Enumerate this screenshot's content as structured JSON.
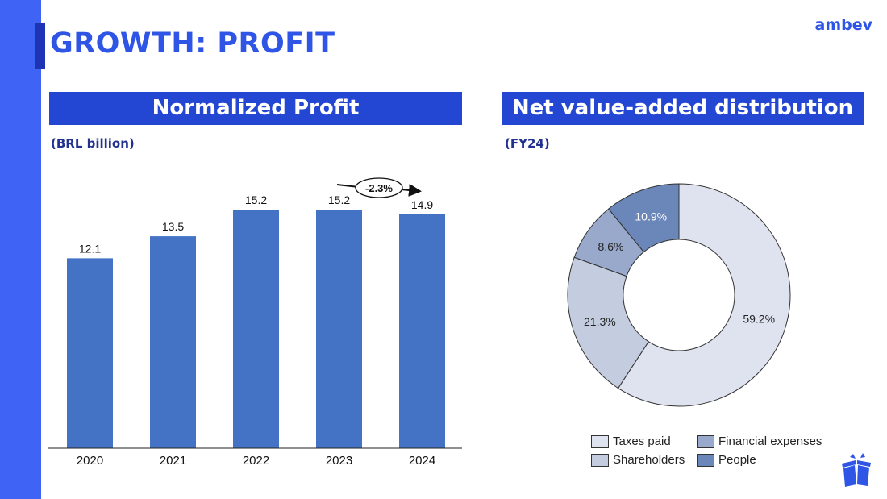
{
  "page": {
    "title": "GROWTH: PROFIT",
    "brand": "ambev"
  },
  "colors": {
    "accent": "#3f63f5",
    "header_bg": "#2346d3",
    "bar": "#4472c4"
  },
  "left_panel": {
    "header": "Normalized Profit",
    "subtitle": "(BRL billion)"
  },
  "right_panel": {
    "header": "Net value-added distribution",
    "subtitle": "(FY24)"
  },
  "chart_data": [
    {
      "type": "bar",
      "title": "Normalized Profit",
      "ylabel": "BRL billion",
      "categories": [
        "2020",
        "2021",
        "2022",
        "2023",
        "2024"
      ],
      "values": [
        12.1,
        13.5,
        15.2,
        15.2,
        14.9
      ],
      "value_labels": [
        "12.1",
        "13.5",
        "15.2",
        "15.2",
        "14.9"
      ],
      "ylim": [
        0,
        15.2
      ],
      "annotation": {
        "text": "-2.3%",
        "from": "2023",
        "to": "2024"
      }
    },
    {
      "type": "pie",
      "title": "Net value-added distribution",
      "subtitle": "FY24",
      "donut": true,
      "slices": [
        {
          "name": "Taxes paid",
          "value": 59.2,
          "label": "59.2%",
          "color": "#dfe3ef"
        },
        {
          "name": "Shareholders",
          "value": 21.3,
          "label": "21.3%",
          "color": "#c4cde0"
        },
        {
          "name": "Financial expenses",
          "value": 8.6,
          "label": "8.6%",
          "color": "#99a9cc"
        },
        {
          "name": "People",
          "value": 10.9,
          "label": "10.9%",
          "color": "#6b86b8"
        }
      ],
      "legend": [
        "Taxes paid",
        "Financial expenses",
        "Shareholders",
        "People"
      ]
    }
  ]
}
